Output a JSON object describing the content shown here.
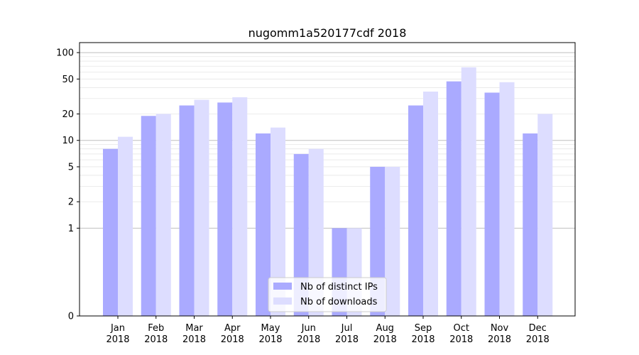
{
  "chart_data": {
    "type": "bar",
    "title": "nugomm1a520177cdf 2018",
    "xlabel": "",
    "ylabel": "",
    "y_scale": "symlog",
    "ylim": [
      0,
      130
    ],
    "y_ticks": [
      0,
      1,
      2,
      5,
      10,
      20,
      50,
      100
    ],
    "grid": true,
    "legend_position": "lower center",
    "categories": [
      [
        "Jan",
        "2018"
      ],
      [
        "Feb",
        "2018"
      ],
      [
        "Mar",
        "2018"
      ],
      [
        "Apr",
        "2018"
      ],
      [
        "May",
        "2018"
      ],
      [
        "Jun",
        "2018"
      ],
      [
        "Jul",
        "2018"
      ],
      [
        "Aug",
        "2018"
      ],
      [
        "Sep",
        "2018"
      ],
      [
        "Oct",
        "2018"
      ],
      [
        "Nov",
        "2018"
      ],
      [
        "Dec",
        "2018"
      ]
    ],
    "series": [
      {
        "name": "Nb of distinct IPs",
        "color": "#aaaaff",
        "values": [
          8,
          19,
          25,
          27,
          12,
          7,
          1,
          5,
          25,
          47,
          35,
          12
        ]
      },
      {
        "name": "Nb of downloads",
        "color": "#ddddff",
        "values": [
          11,
          20,
          29,
          31,
          14,
          8,
          1,
          5,
          36,
          68,
          46,
          20
        ]
      }
    ]
  }
}
